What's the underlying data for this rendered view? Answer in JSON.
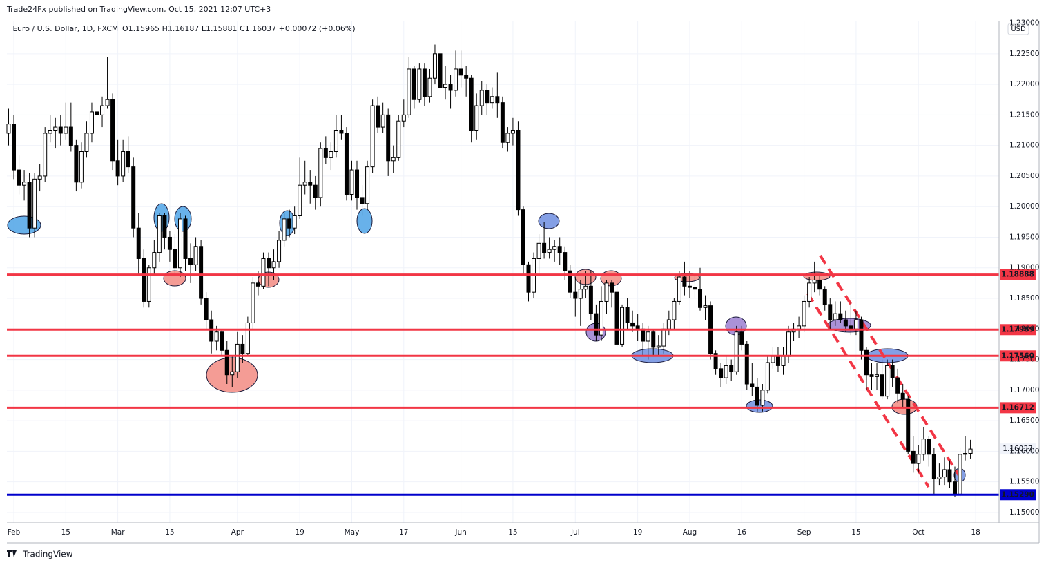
{
  "header": {
    "text": "Trade24Fx published on TradingView.com, Oct 15, 2021 12:07 UTC+3"
  },
  "footer": {
    "brand": "TradingView"
  },
  "chart_data": {
    "type": "candlestick",
    "title": "Euro / U.S. Dollar, 1D, FXCM",
    "subtitle": "O1.15965 H1.16187 L1.15881 C1.16037 +0.00072 (+0.06%)",
    "currency": "USD",
    "up_color": "#ffffff",
    "down_color": "#000000",
    "border_color": "#000000",
    "grid": true,
    "xlim": [
      -0.33,
      190.5
    ],
    "ylim": [
      1.1483,
      1.2304
    ],
    "xticks": [
      {
        "value": 1,
        "label": "Feb"
      },
      {
        "value": 11,
        "label": "15"
      },
      {
        "value": 21,
        "label": "Mar"
      },
      {
        "value": 31,
        "label": "15"
      },
      {
        "value": 44,
        "label": "Apr"
      },
      {
        "value": 56,
        "label": "19"
      },
      {
        "value": 66,
        "label": "May"
      },
      {
        "value": 76,
        "label": "17"
      },
      {
        "value": 87,
        "label": "Jun"
      },
      {
        "value": 97,
        "label": "15"
      },
      {
        "value": 109,
        "label": "Jul"
      },
      {
        "value": 121,
        "label": "19"
      },
      {
        "value": 131,
        "label": "Aug"
      },
      {
        "value": 141,
        "label": "16"
      },
      {
        "value": 153,
        "label": "Sep"
      },
      {
        "value": 163,
        "label": "15"
      },
      {
        "value": 175,
        "label": "Oct"
      },
      {
        "value": 186,
        "label": "18"
      }
    ],
    "yticks": [
      {
        "value": 1.15,
        "label": "1.15000"
      },
      {
        "value": 1.155,
        "label": "1.15500"
      },
      {
        "value": 1.16,
        "label": "1.16000"
      },
      {
        "value": 1.165,
        "label": "1.16500"
      },
      {
        "value": 1.17,
        "label": "1.17000"
      },
      {
        "value": 1.175,
        "label": "1.17500"
      },
      {
        "value": 1.18,
        "label": "1.18000"
      },
      {
        "value": 1.185,
        "label": "1.18500"
      },
      {
        "value": 1.19,
        "label": "1.19000"
      },
      {
        "value": 1.195,
        "label": "1.19500"
      },
      {
        "value": 1.2,
        "label": "1.20000"
      },
      {
        "value": 1.205,
        "label": "1.20500"
      },
      {
        "value": 1.21,
        "label": "1.21000"
      },
      {
        "value": 1.215,
        "label": "1.21500"
      },
      {
        "value": 1.22,
        "label": "1.22000"
      },
      {
        "value": 1.225,
        "label": "1.22500"
      },
      {
        "value": 1.23,
        "label": "1.23000"
      }
    ],
    "levels": [
      {
        "value": 1.18888,
        "color": "#f23645"
      },
      {
        "value": 1.17989,
        "color": "#f23645"
      },
      {
        "value": {
          "value": 1.1756,
          "label": "1.17560"
        },
        "color": "#f23645"
      },
      {
        "value": 1.16712,
        "color": "#f23645"
      },
      {
        "value": {
          "value": 1.1529,
          "label": "1.15290"
        },
        "color": "#0000cc"
      }
    ],
    "ohlc": [
      [
        1.212,
        1.216,
        1.21,
        1.2135
      ],
      [
        1.2135,
        1.215,
        1.2045,
        1.206
      ],
      [
        1.206,
        1.2085,
        1.202,
        1.2035
      ],
      [
        1.2035,
        1.206,
        1.201,
        1.204
      ],
      [
        1.204,
        1.2055,
        1.195,
        1.1965
      ],
      [
        1.1965,
        1.2055,
        1.195,
        1.2045
      ],
      [
        1.2045,
        1.207,
        1.2025,
        1.205
      ],
      [
        1.205,
        1.213,
        1.204,
        1.212
      ],
      [
        1.212,
        1.215,
        1.2105,
        1.2125
      ],
      [
        1.2125,
        1.2145,
        1.2095,
        1.213
      ],
      [
        1.213,
        1.215,
        1.21,
        1.212
      ],
      [
        1.212,
        1.217,
        1.211,
        1.213
      ],
      [
        1.213,
        1.217,
        1.209,
        1.21
      ],
      [
        1.21,
        1.211,
        1.2025,
        1.204
      ],
      [
        1.204,
        1.2105,
        1.203,
        1.209
      ],
      [
        1.209,
        1.214,
        1.208,
        1.212
      ],
      [
        1.212,
        1.217,
        1.2105,
        1.2155
      ],
      [
        1.2155,
        1.218,
        1.213,
        1.215
      ],
      [
        1.215,
        1.218,
        1.213,
        1.2165
      ],
      [
        1.2165,
        1.2245,
        1.216,
        1.2175
      ],
      [
        1.2175,
        1.2185,
        1.206,
        1.2075
      ],
      [
        1.2075,
        1.211,
        1.2035,
        1.205
      ],
      [
        1.205,
        1.211,
        1.204,
        1.209
      ],
      [
        1.209,
        1.2115,
        1.2055,
        1.2065
      ],
      [
        1.2065,
        1.208,
        1.195,
        1.1965
      ],
      [
        1.1965,
        1.199,
        1.189,
        1.1915
      ],
      [
        1.1915,
        1.193,
        1.1835,
        1.1845
      ],
      [
        1.1845,
        1.1905,
        1.1835,
        1.19
      ],
      [
        1.19,
        1.1945,
        1.189,
        1.1925
      ],
      [
        1.1925,
        1.199,
        1.191,
        1.1985
      ],
      [
        1.1985,
        1.199,
        1.193,
        1.195
      ],
      [
        1.195,
        1.196,
        1.191,
        1.193
      ],
      [
        1.193,
        1.1955,
        1.189,
        1.19
      ],
      [
        1.19,
        1.199,
        1.1885,
        1.198
      ],
      [
        1.198,
        1.1985,
        1.1895,
        1.1915
      ],
      [
        1.1915,
        1.194,
        1.1875,
        1.1905
      ],
      [
        1.1905,
        1.195,
        1.1895,
        1.1935
      ],
      [
        1.1935,
        1.1945,
        1.184,
        1.185
      ],
      [
        1.185,
        1.186,
        1.18,
        1.1815
      ],
      [
        1.1815,
        1.183,
        1.176,
        1.178
      ],
      [
        1.178,
        1.1805,
        1.1765,
        1.1795
      ],
      [
        1.1795,
        1.18,
        1.1755,
        1.1765
      ],
      [
        1.1765,
        1.178,
        1.171,
        1.1725
      ],
      [
        1.1725,
        1.1755,
        1.1705,
        1.173
      ],
      [
        1.173,
        1.1795,
        1.172,
        1.1775
      ],
      [
        1.1775,
        1.179,
        1.1745,
        1.176
      ],
      [
        1.176,
        1.182,
        1.1755,
        1.181
      ],
      [
        1.181,
        1.1885,
        1.18,
        1.1875
      ],
      [
        1.1875,
        1.1895,
        1.1855,
        1.187
      ],
      [
        1.187,
        1.1925,
        1.1865,
        1.1915
      ],
      [
        1.1915,
        1.1925,
        1.187,
        1.19
      ],
      [
        1.19,
        1.193,
        1.188,
        1.191
      ],
      [
        1.191,
        1.196,
        1.19,
        1.1945
      ],
      [
        1.1945,
        1.199,
        1.1935,
        1.198
      ],
      [
        1.198,
        1.1995,
        1.195,
        1.1965
      ],
      [
        1.1965,
        1.2,
        1.1955,
        1.1985
      ],
      [
        1.1985,
        1.208,
        1.198,
        1.2035
      ],
      [
        1.2035,
        1.2075,
        1.202,
        1.204
      ],
      [
        1.204,
        1.206,
        1.2005,
        1.2035
      ],
      [
        1.2035,
        1.205,
        1.1995,
        1.2015
      ],
      [
        1.2015,
        1.2105,
        1.2,
        1.2095
      ],
      [
        1.2095,
        1.2115,
        1.207,
        1.208
      ],
      [
        1.208,
        1.2105,
        1.206,
        1.209
      ],
      [
        1.209,
        1.215,
        1.208,
        1.2125
      ],
      [
        1.2125,
        1.215,
        1.211,
        1.212
      ],
      [
        1.212,
        1.213,
        1.201,
        1.202
      ],
      [
        1.202,
        1.2075,
        1.201,
        1.206
      ],
      [
        1.206,
        1.2075,
        1.1995,
        1.2015
      ],
      [
        1.2015,
        1.2035,
        1.1985,
        1.2005
      ],
      [
        1.2005,
        1.2075,
        1.1995,
        1.2065
      ],
      [
        1.2065,
        1.2175,
        1.2055,
        1.2165
      ],
      [
        1.2165,
        1.218,
        1.212,
        1.213
      ],
      [
        1.213,
        1.217,
        1.212,
        1.215
      ],
      [
        1.215,
        1.216,
        1.205,
        1.2075
      ],
      [
        1.2075,
        1.21,
        1.2055,
        1.208
      ],
      [
        1.208,
        1.215,
        1.2075,
        1.214
      ],
      [
        1.214,
        1.2175,
        1.213,
        1.215
      ],
      [
        1.215,
        1.2245,
        1.2145,
        1.2225
      ],
      [
        1.2225,
        1.223,
        1.216,
        1.2175
      ],
      [
        1.2175,
        1.2235,
        1.217,
        1.2225
      ],
      [
        1.2225,
        1.2235,
        1.2165,
        1.218
      ],
      [
        1.218,
        1.2225,
        1.217,
        1.221
      ],
      [
        1.221,
        1.2265,
        1.22,
        1.225
      ],
      [
        1.225,
        1.226,
        1.218,
        1.2195
      ],
      [
        1.2195,
        1.223,
        1.2175,
        1.22
      ],
      [
        1.22,
        1.2215,
        1.216,
        1.219
      ],
      [
        1.219,
        1.2255,
        1.218,
        1.2225
      ],
      [
        1.2225,
        1.2255,
        1.2195,
        1.2215
      ],
      [
        1.2215,
        1.223,
        1.218,
        1.221
      ],
      [
        1.221,
        1.2215,
        1.2105,
        1.2125
      ],
      [
        1.2125,
        1.2185,
        1.211,
        1.2165
      ],
      [
        1.2165,
        1.2205,
        1.215,
        1.219
      ],
      [
        1.219,
        1.22,
        1.215,
        1.217
      ],
      [
        1.217,
        1.2195,
        1.216,
        1.218
      ],
      [
        1.218,
        1.222,
        1.2145,
        1.217
      ],
      [
        1.217,
        1.218,
        1.2095,
        1.2105
      ],
      [
        1.2105,
        1.213,
        1.209,
        1.212
      ],
      [
        1.212,
        1.2145,
        1.21,
        1.2125
      ],
      [
        1.2125,
        1.214,
        1.1985,
        1.1995
      ],
      [
        1.1995,
        1.2,
        1.189,
        1.1905
      ],
      [
        1.1905,
        1.191,
        1.1845,
        1.186
      ],
      [
        1.186,
        1.1925,
        1.185,
        1.1915
      ],
      [
        1.1915,
        1.1955,
        1.189,
        1.194
      ],
      [
        1.194,
        1.1975,
        1.1915,
        1.1925
      ],
      [
        1.1925,
        1.195,
        1.1915,
        1.193
      ],
      [
        1.193,
        1.1945,
        1.191,
        1.1935
      ],
      [
        1.1935,
        1.195,
        1.1905,
        1.1925
      ],
      [
        1.1925,
        1.1935,
        1.188,
        1.1895
      ],
      [
        1.1895,
        1.1905,
        1.185,
        1.186
      ],
      [
        1.186,
        1.1885,
        1.182,
        1.185
      ],
      [
        1.185,
        1.188,
        1.1805,
        1.1865
      ],
      [
        1.1865,
        1.1895,
        1.185,
        1.187
      ],
      [
        1.187,
        1.1895,
        1.1815,
        1.1825
      ],
      [
        1.1825,
        1.184,
        1.178,
        1.179
      ],
      [
        1.179,
        1.187,
        1.178,
        1.1845
      ],
      [
        1.1845,
        1.188,
        1.1825,
        1.1875
      ],
      [
        1.1875,
        1.188,
        1.1835,
        1.186
      ],
      [
        1.186,
        1.188,
        1.177,
        1.1775
      ],
      [
        1.1775,
        1.184,
        1.177,
        1.1835
      ],
      [
        1.1835,
        1.185,
        1.18,
        1.181
      ],
      [
        1.181,
        1.183,
        1.1795,
        1.1805
      ],
      [
        1.1805,
        1.1825,
        1.178,
        1.18
      ],
      [
        1.18,
        1.181,
        1.1755,
        1.178
      ],
      [
        1.178,
        1.1805,
        1.175,
        1.1795
      ],
      [
        1.1795,
        1.18,
        1.1755,
        1.177
      ],
      [
        1.177,
        1.179,
        1.1755,
        1.1772
      ],
      [
        1.1772,
        1.181,
        1.176,
        1.18
      ],
      [
        1.18,
        1.183,
        1.179,
        1.1815
      ],
      [
        1.1815,
        1.185,
        1.18,
        1.1845
      ],
      [
        1.1845,
        1.1895,
        1.184,
        1.1885
      ],
      [
        1.1885,
        1.191,
        1.1855,
        1.187
      ],
      [
        1.187,
        1.1895,
        1.185,
        1.1868
      ],
      [
        1.1868,
        1.189,
        1.185,
        1.1865
      ],
      [
        1.1865,
        1.19,
        1.183,
        1.1835
      ],
      [
        1.1835,
        1.1855,
        1.1815,
        1.1838
      ],
      [
        1.1838,
        1.1845,
        1.175,
        1.176
      ],
      [
        1.176,
        1.1765,
        1.1725,
        1.1735
      ],
      [
        1.1735,
        1.1745,
        1.1705,
        1.172
      ],
      [
        1.172,
        1.1755,
        1.171,
        1.174
      ],
      [
        1.174,
        1.175,
        1.1715,
        1.173
      ],
      [
        1.173,
        1.1805,
        1.1725,
        1.1795
      ],
      [
        1.1795,
        1.1805,
        1.1765,
        1.1775
      ],
      [
        1.1775,
        1.178,
        1.17,
        1.171
      ],
      [
        1.171,
        1.1745,
        1.169,
        1.1705
      ],
      [
        1.1705,
        1.172,
        1.1665,
        1.1675
      ],
      [
        1.1675,
        1.171,
        1.1665,
        1.17
      ],
      [
        1.17,
        1.1755,
        1.1695,
        1.1745
      ],
      [
        1.1745,
        1.177,
        1.1735,
        1.1755
      ],
      [
        1.1755,
        1.177,
        1.173,
        1.174
      ],
      [
        1.174,
        1.177,
        1.1725,
        1.1755
      ],
      [
        1.1755,
        1.1805,
        1.1745,
        1.1795
      ],
      [
        1.1795,
        1.181,
        1.178,
        1.18
      ],
      [
        1.18,
        1.182,
        1.1785,
        1.1805
      ],
      [
        1.1805,
        1.1855,
        1.1795,
        1.1845
      ],
      [
        1.1845,
        1.1885,
        1.1835,
        1.1875
      ],
      [
        1.1875,
        1.191,
        1.186,
        1.188
      ],
      [
        1.188,
        1.189,
        1.1855,
        1.1865
      ],
      [
        1.1865,
        1.187,
        1.183,
        1.184
      ],
      [
        1.184,
        1.185,
        1.18,
        1.1815
      ],
      [
        1.1815,
        1.1845,
        1.1805,
        1.1825
      ],
      [
        1.1825,
        1.1845,
        1.181,
        1.1815
      ],
      [
        1.1815,
        1.183,
        1.1795,
        1.1805
      ],
      [
        1.1805,
        1.1845,
        1.179,
        1.18
      ],
      [
        1.18,
        1.183,
        1.179,
        1.1815
      ],
      [
        1.1815,
        1.182,
        1.175,
        1.1765
      ],
      [
        1.1765,
        1.177,
        1.17,
        1.1725
      ],
      [
        1.1725,
        1.1745,
        1.17,
        1.1722
      ],
      [
        1.1722,
        1.1745,
        1.17,
        1.1725
      ],
      [
        1.1725,
        1.175,
        1.1685,
        1.169
      ],
      [
        1.169,
        1.175,
        1.1685,
        1.174
      ],
      [
        1.174,
        1.175,
        1.1705,
        1.172
      ],
      [
        1.172,
        1.1735,
        1.168,
        1.1695
      ],
      [
        1.1695,
        1.171,
        1.167,
        1.1685
      ],
      [
        1.1685,
        1.169,
        1.1595,
        1.16
      ],
      [
        1.16,
        1.1625,
        1.1565,
        1.158
      ],
      [
        1.158,
        1.161,
        1.1565,
        1.1595
      ],
      [
        1.1595,
        1.164,
        1.1585,
        1.162
      ],
      [
        1.162,
        1.1625,
        1.1575,
        1.1595
      ],
      [
        1.1595,
        1.1605,
        1.153,
        1.1555
      ],
      [
        1.1555,
        1.158,
        1.1545,
        1.1558
      ],
      [
        1.1558,
        1.159,
        1.1545,
        1.157
      ],
      [
        1.157,
        1.1585,
        1.154,
        1.155
      ],
      [
        1.155,
        1.1575,
        1.1525,
        1.153
      ],
      [
        1.153,
        1.1605,
        1.1525,
        1.1595
      ],
      [
        1.1595,
        1.1625,
        1.1585,
        1.15965
      ],
      [
        1.15965,
        1.16187,
        1.15881,
        1.16037
      ]
    ]
  }
}
